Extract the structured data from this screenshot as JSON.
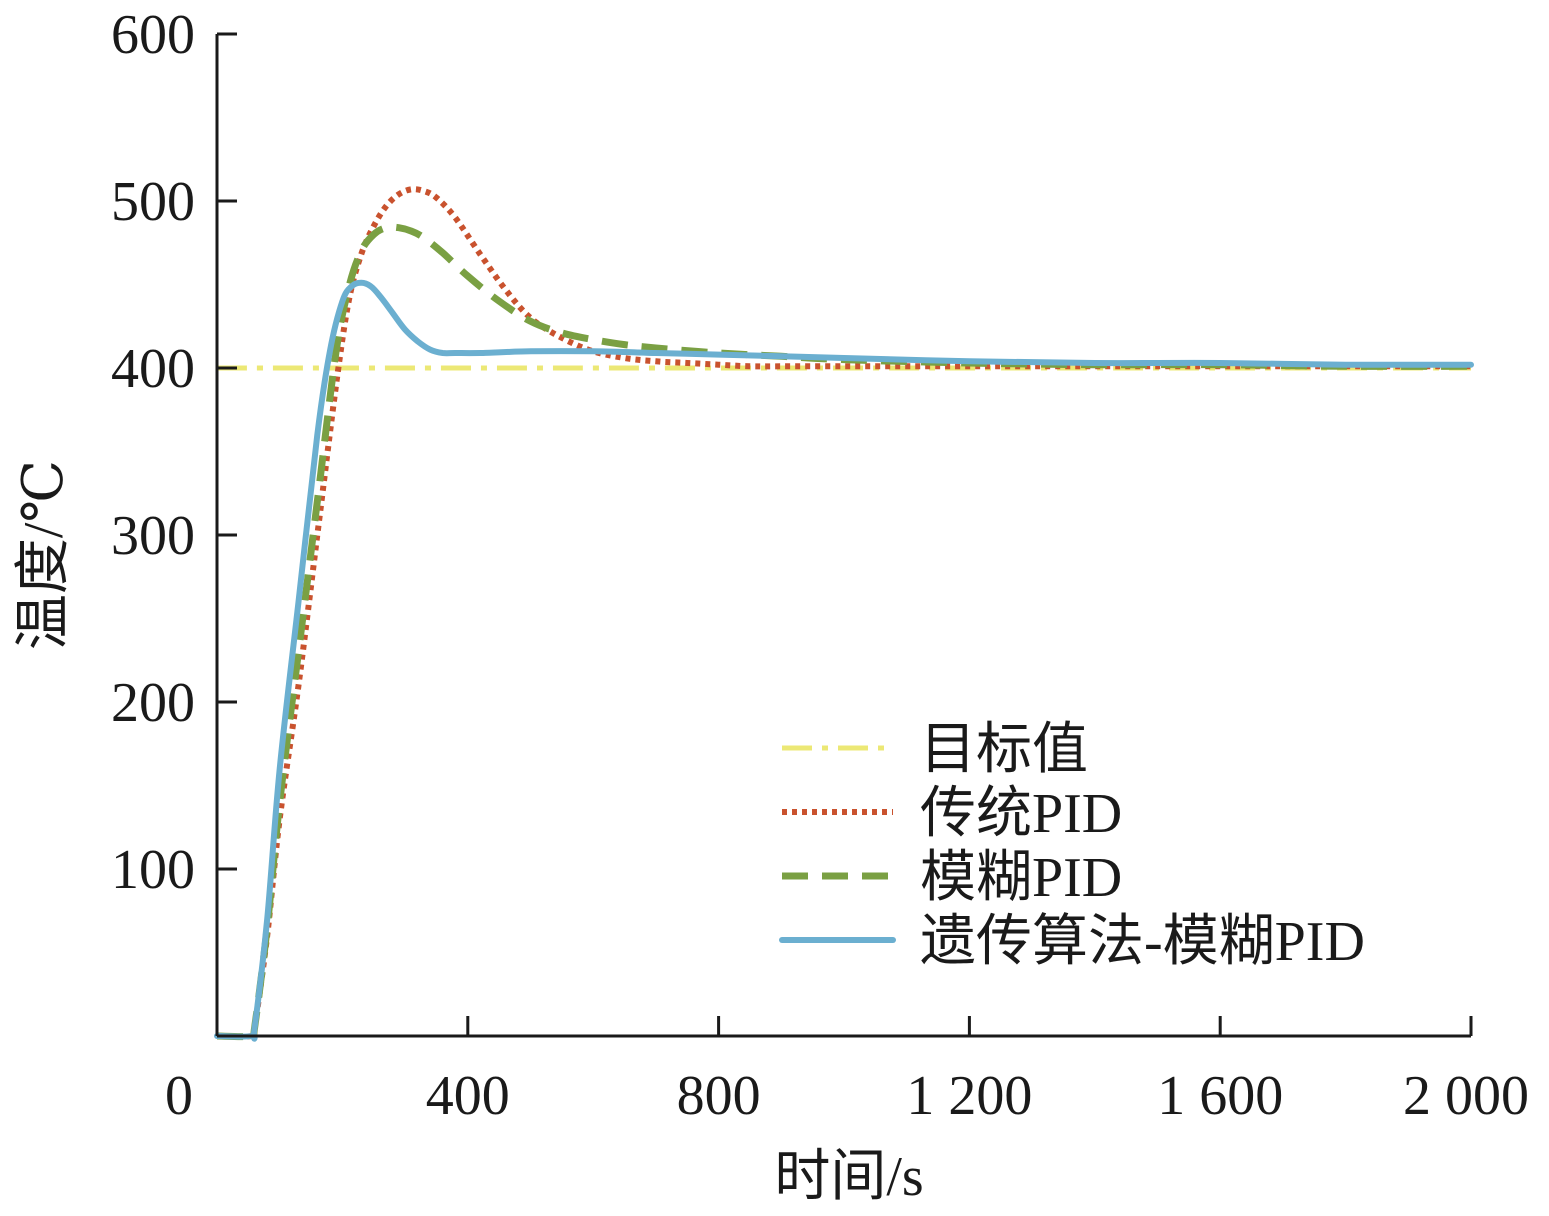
{
  "chart_data": {
    "type": "line",
    "title": "",
    "xlabel": "时间/s",
    "ylabel": "温度/℃",
    "xlim": [
      0,
      2000
    ],
    "ylim": [
      0,
      600
    ],
    "x_ticks": [
      0,
      400,
      800,
      1200,
      1600,
      2000
    ],
    "x_tick_labels": [
      "0",
      "400",
      "800",
      "1 200",
      "1 600",
      "2 000"
    ],
    "y_ticks": [
      100,
      200,
      300,
      400,
      500,
      600
    ],
    "y_tick_labels": [
      "100",
      "200",
      "300",
      "400",
      "500",
      "600"
    ],
    "grid": false,
    "legend_position": "bottom-right",
    "series": [
      {
        "name": "目标值",
        "style": "dash-dot",
        "color": "#ece875",
        "x": [
          0,
          2000
        ],
        "y": [
          400,
          400
        ]
      },
      {
        "name": "传统PID",
        "style": "dotted",
        "color": "#c9522e",
        "x": [
          0,
          55,
          60,
          80,
          100,
          130,
          160,
          190,
          210,
          230,
          250,
          270,
          290,
          310,
          330,
          350,
          380,
          420,
          460,
          500,
          550,
          600,
          650,
          700,
          750,
          800,
          850,
          900,
          1000,
          1100,
          1200,
          1400,
          1600,
          1800,
          2000
        ],
        "y": [
          0,
          0,
          5,
          60,
          130,
          210,
          300,
          390,
          440,
          468,
          485,
          497,
          504,
          507,
          506,
          502,
          490,
          468,
          447,
          430,
          418,
          410,
          406,
          404,
          403,
          402,
          401,
          401,
          401,
          401,
          401,
          401,
          401,
          401,
          401
        ]
      },
      {
        "name": "模糊PID",
        "style": "dashed",
        "color": "#7aa043",
        "x": [
          0,
          55,
          60,
          80,
          100,
          130,
          160,
          190,
          210,
          230,
          250,
          270,
          290,
          310,
          330,
          360,
          400,
          450,
          500,
          550,
          600,
          650,
          700,
          800,
          900,
          1000,
          1200,
          1400,
          1600,
          1800,
          2000
        ],
        "y": [
          0,
          0,
          5,
          65,
          140,
          230,
          320,
          410,
          448,
          470,
          480,
          484,
          484,
          482,
          478,
          469,
          455,
          440,
          428,
          421,
          417,
          414,
          412,
          409,
          407,
          405,
          403,
          402,
          402,
          401,
          401
        ]
      },
      {
        "name": "遗传算法-模糊PID",
        "style": "solid",
        "color": "#6bafd0",
        "x": [
          0,
          55,
          60,
          80,
          100,
          130,
          160,
          180,
          200,
          215,
          230,
          245,
          260,
          280,
          300,
          320,
          340,
          360,
          380,
          420,
          500,
          600,
          700,
          800,
          900,
          1000,
          1200,
          1400,
          1600,
          1800,
          2000
        ],
        "y": [
          0,
          0,
          5,
          70,
          160,
          260,
          360,
          410,
          440,
          449,
          451,
          449,
          443,
          433,
          423,
          416,
          411,
          409,
          409,
          409,
          410,
          410,
          409,
          408,
          407,
          406,
          404,
          403,
          403,
          402,
          402
        ]
      }
    ]
  }
}
